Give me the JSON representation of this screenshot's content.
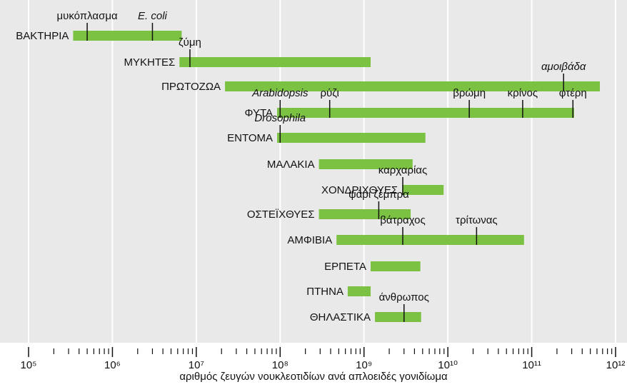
{
  "chart_data": {
    "type": "range",
    "x_label": "αριθμός ζευγών νουκλεοτιδίων ανά απλοειδές γονιδίωμα",
    "xscale": "log",
    "xlim": [
      100000,
      1000000000000
    ],
    "xticks": [
      {
        "value": 100000,
        "label": "10⁵"
      },
      {
        "value": 1000000,
        "label": "10⁶"
      },
      {
        "value": 10000000,
        "label": "10⁷"
      },
      {
        "value": 100000000,
        "label": "10⁸"
      },
      {
        "value": 1000000000,
        "label": "10⁹"
      },
      {
        "value": 10000000000,
        "label": "10¹⁰"
      },
      {
        "value": 100000000000,
        "label": "10¹¹"
      },
      {
        "value": 1000000000000,
        "label": "10¹²"
      }
    ],
    "minor_ticks": true,
    "grid": true,
    "color": "#7cc242",
    "rows": [
      {
        "label": "ΒΑΚΤΗΡΙΑ",
        "range": [
          340000,
          6700000
        ],
        "markers": [
          {
            "label": "μυκόπλασμα",
            "value": 500000,
            "italic": false
          },
          {
            "label": "E. coli",
            "value": 3000000,
            "italic": true
          }
        ]
      },
      {
        "label": "ΜΥΚΗΤΕΣ",
        "range": [
          6300000,
          1200000000
        ],
        "markers": [
          {
            "label": "ζύμη",
            "value": 8400000,
            "italic": false
          }
        ]
      },
      {
        "label": "ΠΡΩΤΟΖΩΑ",
        "range": [
          22000000,
          650000000000
        ],
        "markers": [
          {
            "label": "αμοιβάδα",
            "value": 240000000000,
            "italic": true
          }
        ]
      },
      {
        "label": "ΦΥΤΑ",
        "range": [
          92000000,
          320000000000
        ],
        "markers": [
          {
            "label": "Arabidopsis",
            "value": 100000000,
            "italic": true
          },
          {
            "label": "ρύζι",
            "value": 390000000,
            "italic": false
          },
          {
            "label": "βρώμη",
            "value": 18000000000,
            "italic": false
          },
          {
            "label": "κρίνος",
            "value": 78000000000,
            "italic": false
          },
          {
            "label": "φτέρη",
            "value": 310000000000,
            "italic": false
          }
        ]
      },
      {
        "label": "ΕΝΤΟΜΑ",
        "range": [
          92000000,
          5400000000
        ],
        "markers": [
          {
            "label": "Drosophila",
            "value": 100000000,
            "italic": true
          }
        ]
      },
      {
        "label": "ΜΑΛΑΚΙΑ",
        "range": [
          290000000,
          3800000000
        ],
        "markers": []
      },
      {
        "label": "ΧΟΝΔΡΙΧΘΥΕΣ",
        "range": [
          2850000000,
          8900000000
        ],
        "markers": [
          {
            "label": "καρχαρίας",
            "value": 2900000000,
            "italic": false
          }
        ]
      },
      {
        "label": "ΟΣΤΕΪΧΘΥΕΣ",
        "range": [
          290000000,
          3600000000
        ],
        "markers": [
          {
            "label": "ψάρι ζέμπρα",
            "value": 1500000000,
            "italic": false
          }
        ]
      },
      {
        "label": "ΑΜΦΙΒΙΑ",
        "range": [
          470000000,
          81000000000
        ],
        "markers": [
          {
            "label": "βάτραχος",
            "value": 2900000000,
            "italic": false
          },
          {
            "label": "τρίτωνας",
            "value": 22000000000,
            "italic": false
          }
        ]
      },
      {
        "label": "ΕΡΠΕΤΑ",
        "range": [
          1200000000,
          4700000000
        ],
        "markers": []
      },
      {
        "label": "ΠΤΗΝΑ",
        "range": [
          640000000,
          1200000000
        ],
        "markers": []
      },
      {
        "label": "ΘΗΛΑΣΤΙΚΑ",
        "range": [
          1350000000,
          4800000000
        ],
        "markers": [
          {
            "label": "άνθρωπος",
            "value": 3000000000,
            "italic": false
          }
        ]
      }
    ]
  }
}
